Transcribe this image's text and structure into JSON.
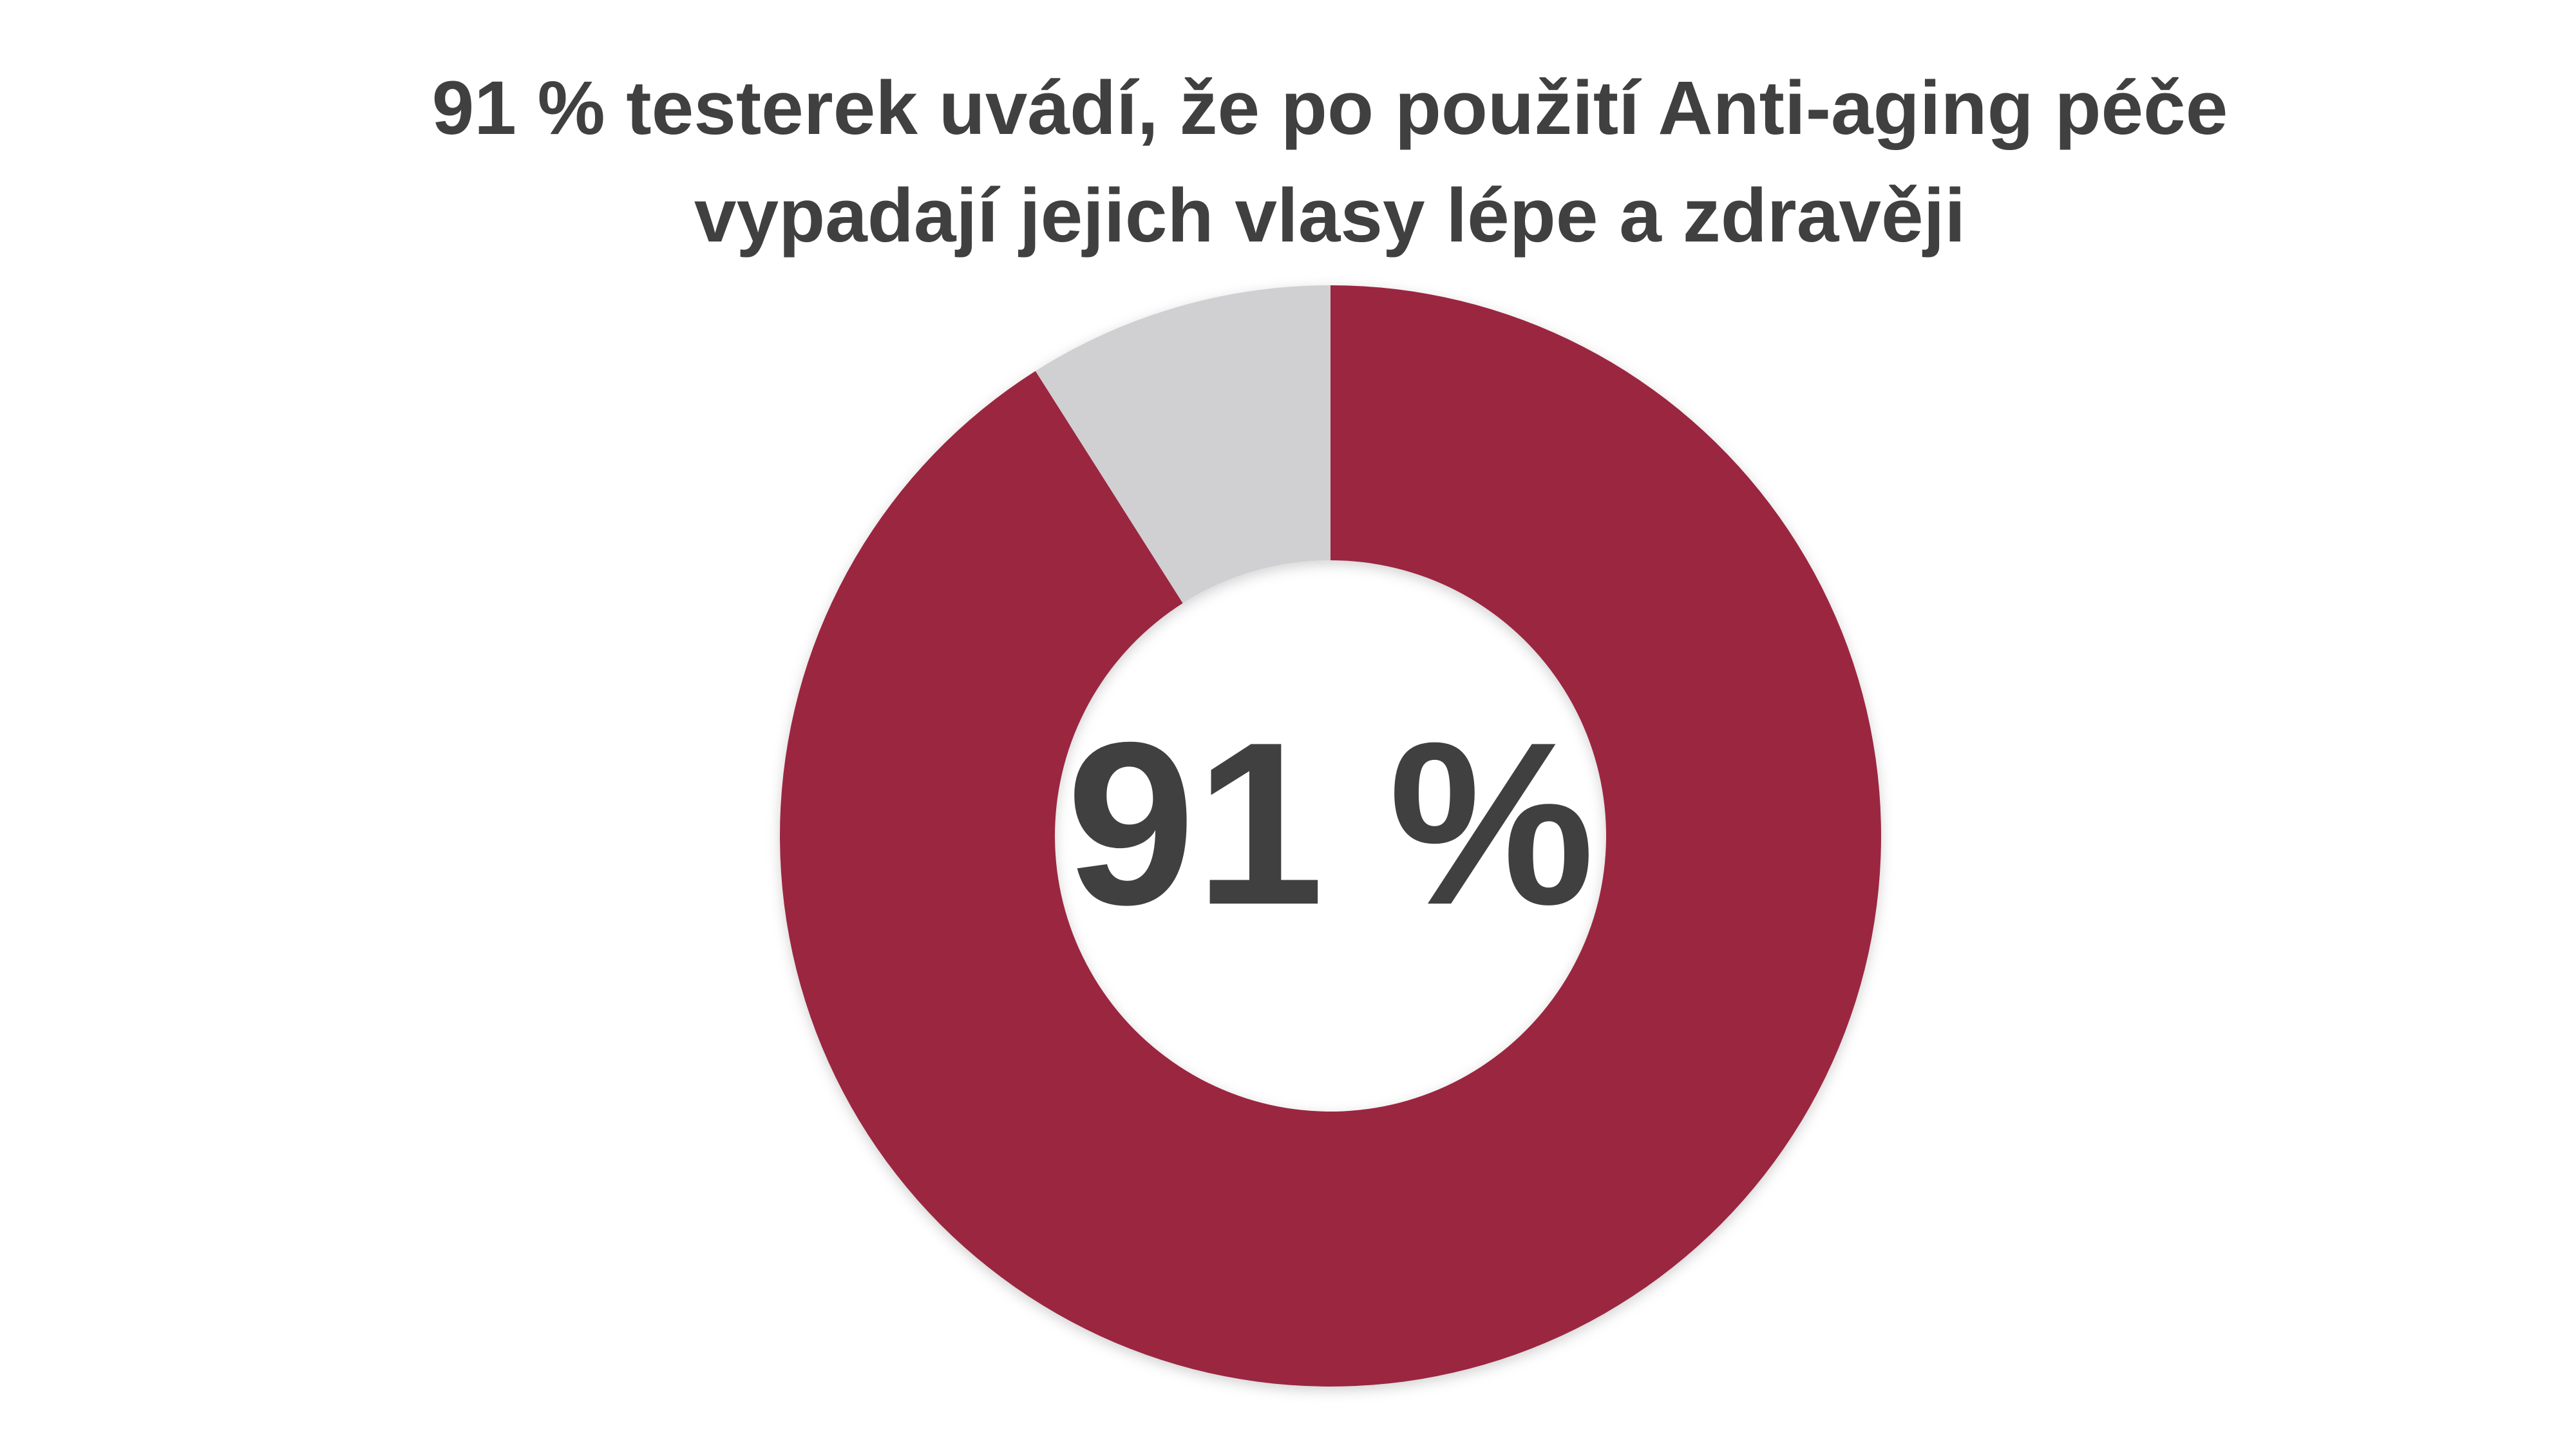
{
  "chart_data": {
    "type": "donut",
    "title": "91 % testerek uvádí, že po použití Anti-aging péče vypadají jejich vlasy lépe a zdravěji",
    "values": [
      91,
      9
    ],
    "value_labels": [
      "91 %",
      null
    ],
    "colors": [
      "#9b2540",
      "#d0cfd1"
    ]
  }
}
